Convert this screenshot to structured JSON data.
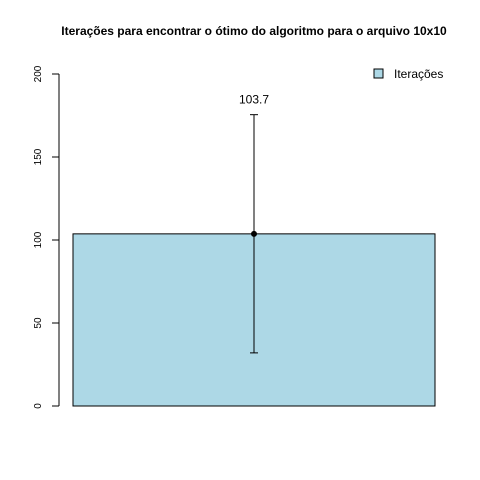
{
  "chart_data": {
    "type": "bar",
    "title": "Iterações para encontrar o ótimo do algoritmo para o arquivo 10x10",
    "xlabel": "",
    "ylabel": "",
    "categories": [
      ""
    ],
    "series": [
      {
        "name": "Iterações",
        "values": [
          103.7
        ],
        "error_low": [
          32
        ],
        "error_high": [
          175.5
        ],
        "value_labels": [
          "103.7"
        ],
        "color": "#add8e6"
      }
    ],
    "ylim": [
      0,
      200
    ],
    "yticks": [
      0,
      50,
      100,
      150,
      200
    ],
    "ytick_labels": [
      "0",
      "50",
      "100",
      "150",
      "200"
    ],
    "grid": false,
    "legend": {
      "position": "top-right",
      "entries": [
        "Iterações"
      ]
    }
  }
}
